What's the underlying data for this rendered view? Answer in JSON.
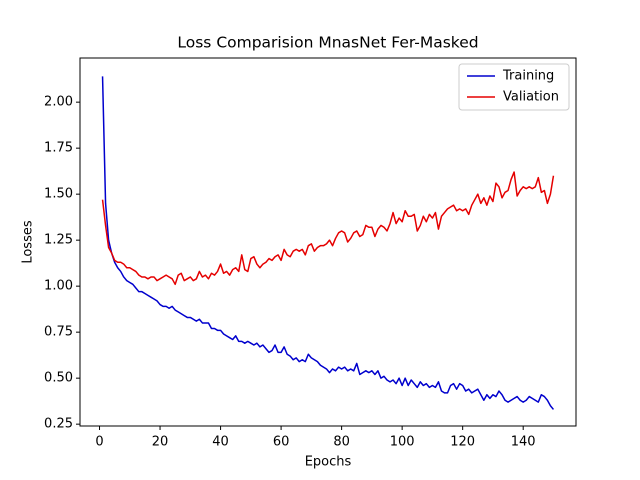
{
  "chart_data": {
    "type": "line",
    "title": "Loss Comparision MnasNet Fer-Masked",
    "x_label": "Epochs",
    "y_label": "Losses",
    "x": [
      1,
      2,
      3,
      4,
      5,
      6,
      7,
      8,
      9,
      10,
      11,
      12,
      13,
      14,
      15,
      16,
      17,
      18,
      19,
      20,
      21,
      22,
      23,
      24,
      25,
      26,
      27,
      28,
      29,
      30,
      31,
      32,
      33,
      34,
      35,
      36,
      37,
      38,
      39,
      40,
      41,
      42,
      43,
      44,
      45,
      46,
      47,
      48,
      49,
      50,
      51,
      52,
      53,
      54,
      55,
      56,
      57,
      58,
      59,
      60,
      61,
      62,
      63,
      64,
      65,
      66,
      67,
      68,
      69,
      70,
      71,
      72,
      73,
      74,
      75,
      76,
      77,
      78,
      79,
      80,
      81,
      82,
      83,
      84,
      85,
      86,
      87,
      88,
      89,
      90,
      91,
      92,
      93,
      94,
      95,
      96,
      97,
      98,
      99,
      100,
      101,
      102,
      103,
      104,
      105,
      106,
      107,
      108,
      109,
      110,
      111,
      112,
      113,
      114,
      115,
      116,
      117,
      118,
      119,
      120,
      121,
      122,
      123,
      124,
      125,
      126,
      127,
      128,
      129,
      130,
      131,
      132,
      133,
      134,
      135,
      136,
      137,
      138,
      139,
      140,
      141,
      142,
      143,
      144,
      145,
      146,
      147,
      148,
      149,
      150
    ],
    "series": [
      {
        "name": "Training",
        "color": "#0000cd",
        "values": [
          2.14,
          1.45,
          1.25,
          1.18,
          1.13,
          1.1,
          1.08,
          1.05,
          1.03,
          1.02,
          1.01,
          0.99,
          0.97,
          0.97,
          0.96,
          0.95,
          0.94,
          0.93,
          0.92,
          0.9,
          0.89,
          0.89,
          0.88,
          0.89,
          0.87,
          0.86,
          0.85,
          0.84,
          0.83,
          0.83,
          0.82,
          0.81,
          0.82,
          0.8,
          0.8,
          0.8,
          0.77,
          0.77,
          0.76,
          0.76,
          0.74,
          0.73,
          0.72,
          0.71,
          0.73,
          0.7,
          0.7,
          0.69,
          0.7,
          0.69,
          0.68,
          0.69,
          0.67,
          0.68,
          0.66,
          0.64,
          0.65,
          0.68,
          0.64,
          0.64,
          0.67,
          0.63,
          0.62,
          0.6,
          0.61,
          0.59,
          0.6,
          0.59,
          0.63,
          0.61,
          0.6,
          0.59,
          0.57,
          0.56,
          0.55,
          0.53,
          0.55,
          0.54,
          0.56,
          0.55,
          0.56,
          0.54,
          0.55,
          0.54,
          0.58,
          0.52,
          0.53,
          0.54,
          0.53,
          0.54,
          0.52,
          0.54,
          0.5,
          0.51,
          0.49,
          0.48,
          0.49,
          0.47,
          0.5,
          0.46,
          0.5,
          0.46,
          0.49,
          0.47,
          0.45,
          0.48,
          0.46,
          0.47,
          0.45,
          0.46,
          0.45,
          0.48,
          0.43,
          0.42,
          0.42,
          0.46,
          0.47,
          0.44,
          0.47,
          0.46,
          0.43,
          0.44,
          0.42,
          0.43,
          0.44,
          0.41,
          0.38,
          0.41,
          0.39,
          0.41,
          0.4,
          0.43,
          0.41,
          0.38,
          0.37,
          0.38,
          0.39,
          0.4,
          0.38,
          0.37,
          0.38,
          0.4,
          0.39,
          0.38,
          0.37,
          0.41,
          0.4,
          0.38,
          0.35,
          0.33
        ]
      },
      {
        "name": "Valiation",
        "color": "#e50000",
        "values": [
          1.47,
          1.33,
          1.21,
          1.18,
          1.14,
          1.13,
          1.13,
          1.12,
          1.1,
          1.1,
          1.09,
          1.08,
          1.06,
          1.05,
          1.05,
          1.04,
          1.05,
          1.05,
          1.03,
          1.04,
          1.05,
          1.06,
          1.05,
          1.04,
          1.01,
          1.06,
          1.07,
          1.03,
          1.04,
          1.05,
          1.03,
          1.04,
          1.08,
          1.05,
          1.06,
          1.04,
          1.07,
          1.06,
          1.08,
          1.12,
          1.07,
          1.08,
          1.06,
          1.09,
          1.1,
          1.08,
          1.17,
          1.09,
          1.08,
          1.15,
          1.16,
          1.12,
          1.1,
          1.12,
          1.13,
          1.15,
          1.14,
          1.16,
          1.17,
          1.14,
          1.2,
          1.17,
          1.16,
          1.19,
          1.2,
          1.19,
          1.2,
          1.17,
          1.22,
          1.23,
          1.19,
          1.21,
          1.22,
          1.22,
          1.23,
          1.25,
          1.22,
          1.26,
          1.29,
          1.3,
          1.29,
          1.24,
          1.26,
          1.29,
          1.3,
          1.27,
          1.28,
          1.33,
          1.32,
          1.32,
          1.27,
          1.31,
          1.33,
          1.32,
          1.3,
          1.34,
          1.4,
          1.34,
          1.37,
          1.35,
          1.41,
          1.38,
          1.38,
          1.39,
          1.3,
          1.33,
          1.38,
          1.35,
          1.39,
          1.37,
          1.4,
          1.31,
          1.38,
          1.4,
          1.42,
          1.43,
          1.44,
          1.41,
          1.42,
          1.41,
          1.42,
          1.39,
          1.44,
          1.47,
          1.5,
          1.45,
          1.48,
          1.44,
          1.49,
          1.46,
          1.56,
          1.54,
          1.48,
          1.51,
          1.52,
          1.58,
          1.62,
          1.49,
          1.52,
          1.54,
          1.53,
          1.54,
          1.53,
          1.54,
          1.59,
          1.51,
          1.52,
          1.45,
          1.5,
          1.6
        ]
      }
    ],
    "xlim": [
      -6.45,
      157.45
    ],
    "xticks": [
      0,
      20,
      40,
      60,
      80,
      100,
      120,
      140
    ],
    "ylim": [
      0.24,
      2.24
    ],
    "yticks": [
      0.25,
      {
        "value": 0.5,
        "label": "0.50"
      },
      0.75,
      {
        "value": 1,
        "label": "1.00"
      },
      1.25,
      {
        "value": 1.5,
        "label": "1.50"
      },
      1.75,
      {
        "value": 2,
        "label": "2.00"
      }
    ],
    "legend": "upper right"
  }
}
